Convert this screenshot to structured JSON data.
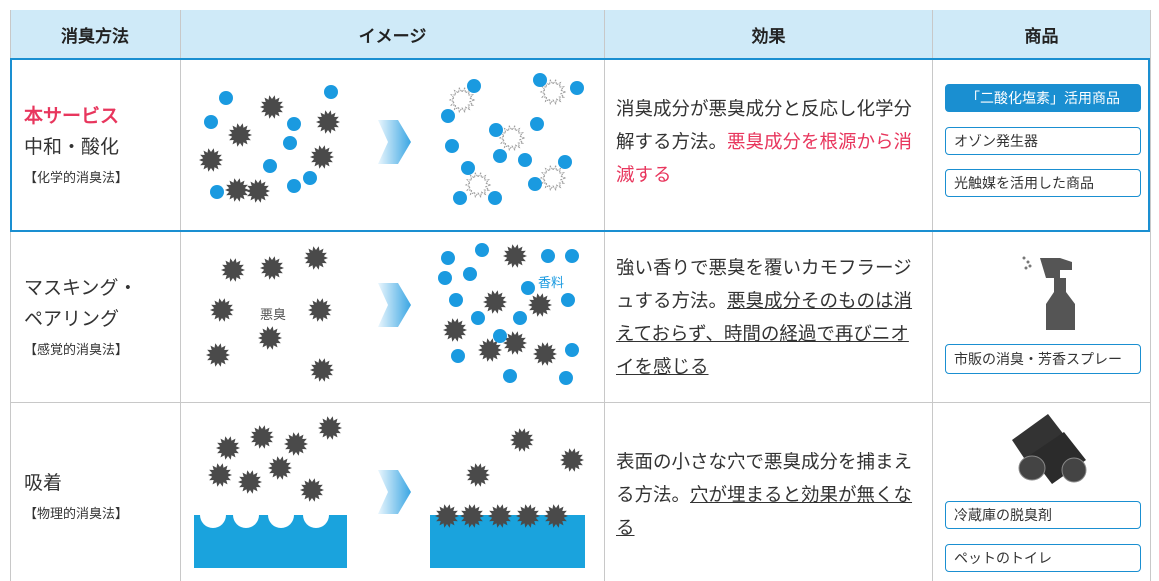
{
  "header": {
    "columns": [
      "消臭方法",
      "イメージ",
      "効果",
      "商品"
    ]
  },
  "rows": [
    {
      "method": {
        "highlight": "本サービス",
        "lines": [
          "中和・酸化"
        ],
        "category": "【化学的消臭法】"
      },
      "effect": {
        "text": "消臭成分が悪臭成分と反応し化学分解する方法。",
        "emphasis": "悪臭成分を根源から消滅する"
      },
      "products": [
        "「二酸化塩素」活用商品",
        "オゾン発生器",
        "光触媒を活用した商品"
      ]
    },
    {
      "method": {
        "lines": [
          "マスキング・",
          "ペアリング"
        ],
        "category": "【感覚的消臭法】"
      },
      "image_labels": [
        "悪臭",
        "香料"
      ],
      "effect": {
        "text": "強い香りで悪臭を覆いカモフラージュする方法。",
        "emphasis": "悪臭成分そのものは消えておらず、時間の経過で再びニオイを感じる"
      },
      "products": [
        "市販の消臭・芳香スプレー"
      ]
    },
    {
      "method": {
        "lines": [
          "吸着"
        ],
        "category": "【物理的消臭法】"
      },
      "effect": {
        "text": "表面の小さな穴で悪臭成分を捕まえる方法。",
        "emphasis": "穴が埋まると効果が無くなる"
      },
      "products": [
        "冷蔵庫の脱臭剤",
        "ペットのトイレ"
      ]
    }
  ]
}
